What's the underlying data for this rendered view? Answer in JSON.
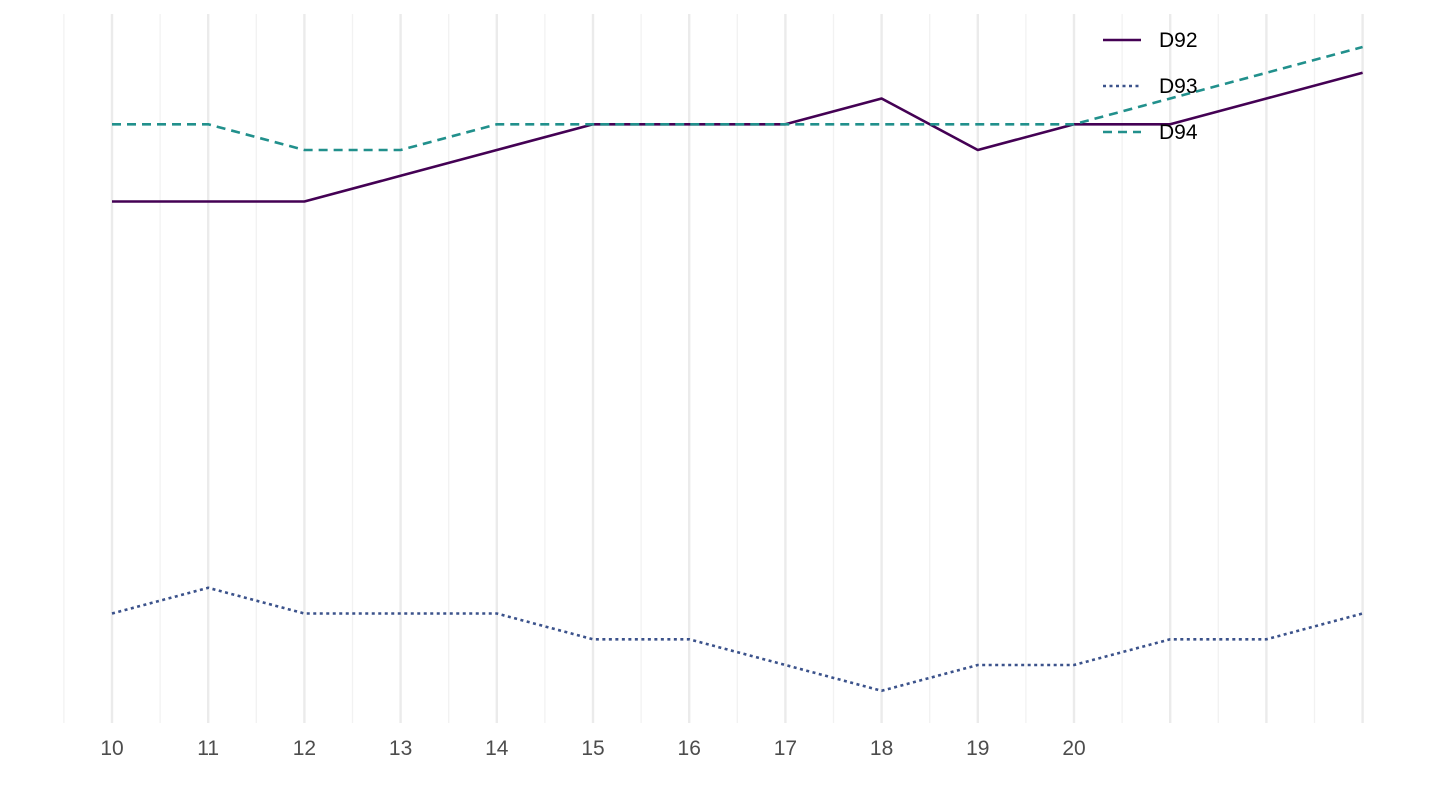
{
  "chart_data": {
    "type": "line",
    "title": "",
    "xlabel": "",
    "ylabel": "",
    "x": [
      10,
      11,
      12,
      13,
      14,
      15,
      16,
      17,
      18,
      19,
      20,
      21,
      22,
      23
    ],
    "x_tick_labels": [
      "10",
      "11",
      "12",
      "13",
      "14",
      "15",
      "16",
      "17",
      "18",
      "19",
      "20"
    ],
    "xlim": [
      9.5,
      23
    ],
    "grid": "vertical",
    "legend_position": "top-right",
    "series": [
      {
        "name": "D92",
        "color": "#440154",
        "line_style": "solid",
        "values": [
          5.0,
          5.0,
          5.0,
          5.5,
          6.0,
          6.5,
          6.5,
          6.5,
          7.0,
          6.0,
          6.5,
          6.5,
          7.0,
          7.5
        ]
      },
      {
        "name": "D93",
        "color": "#3b528b",
        "line_style": "dotted",
        "values": [
          -3.0,
          -2.5,
          -3.0,
          -3.0,
          -3.0,
          -3.5,
          -3.5,
          -4.0,
          -4.5,
          -4.0,
          -4.0,
          -3.5,
          -3.5,
          -3.0
        ]
      },
      {
        "name": "D94",
        "color": "#21908c",
        "line_style": "dashed",
        "values": [
          6.5,
          6.5,
          6.0,
          6.0,
          6.5,
          6.5,
          6.5,
          6.5,
          6.5,
          6.5,
          6.5,
          7.0,
          7.5,
          8.0
        ]
      }
    ]
  }
}
